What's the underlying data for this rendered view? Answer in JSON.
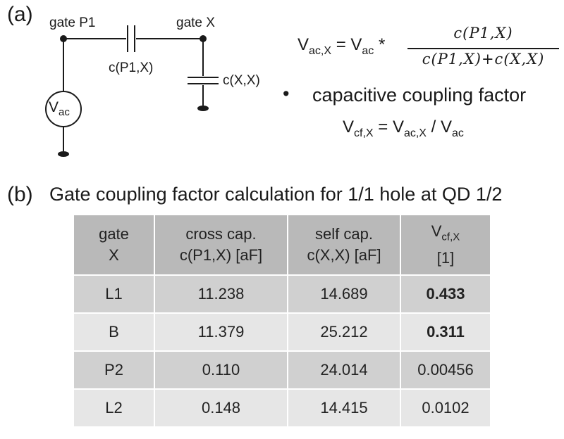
{
  "panel_a": {
    "label": "(a)",
    "node_left_label": "gate P1",
    "node_right_label": "gate X",
    "cap_cross_label": "c(P1,X)",
    "cap_self_label": "c(X,X)",
    "source_label_main": "V",
    "source_label_sub": "ac",
    "formula1": {
      "lhs_main": "V",
      "lhs_sub": "ac,X",
      "eq": "=",
      "rhs_main": "V",
      "rhs_sub": "ac",
      "times": "*",
      "numerator": "c(P1,X)",
      "denominator": "c(P1,X)+c(X,X)"
    },
    "bullet_symbol": "•",
    "bullet_text": "capacitive coupling factor",
    "formula2": {
      "lhs_main": "V",
      "lhs_sub": "cf,X",
      "eq": "=",
      "num_main": "V",
      "num_sub": "ac,X",
      "slash": "/",
      "den_main": "V",
      "den_sub": "ac"
    }
  },
  "panel_b": {
    "label": "(b)",
    "title": "Gate coupling factor calculation for 1/1 hole at QD 1/2",
    "headers": [
      {
        "line1": "gate",
        "line2": "X"
      },
      {
        "line1": "cross cap.",
        "line2": "c(P1,X) [aF]"
      },
      {
        "line1": "self cap.",
        "line2": "c(X,X) [aF]"
      },
      {
        "line1_main": "V",
        "line1_sub": "cf,X",
        "line2": "[1]"
      }
    ],
    "rows": [
      {
        "gate": "L1",
        "cross": "11.238",
        "self": "14.689",
        "vcf": "0.433"
      },
      {
        "gate": "B",
        "cross": "11.379",
        "self": "25.212",
        "vcf": "0.311"
      },
      {
        "gate": "P2",
        "cross": "0.110",
        "self": "24.014",
        "vcf": "0.00456"
      },
      {
        "gate": "L2",
        "cross": "0.148",
        "self": "14.415",
        "vcf": "0.0102"
      }
    ]
  }
}
